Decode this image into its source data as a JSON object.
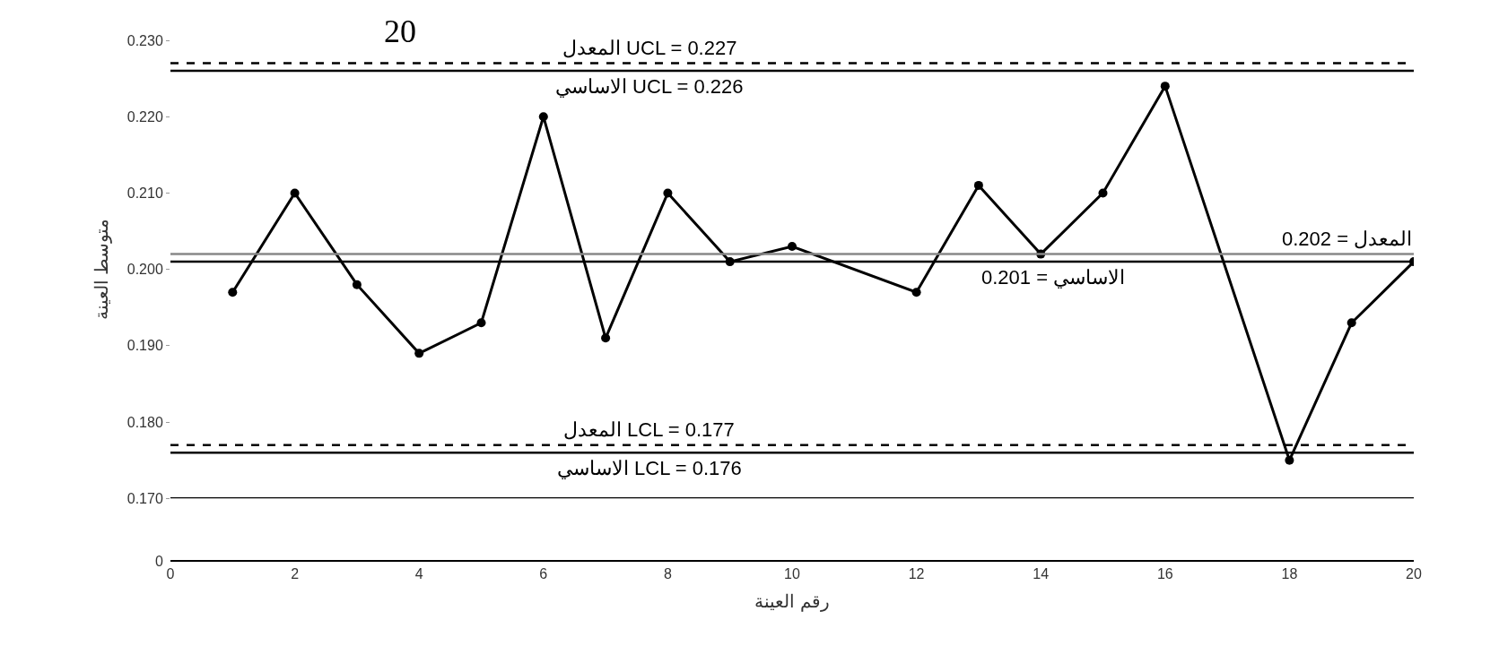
{
  "chart_data": {
    "type": "line",
    "xlabel": "رقم العينة",
    "ylabel": "متوسط العينة",
    "annotations": [
      "20",
      "0"
    ],
    "series": [
      {
        "color": "#000000",
        "x": [
          1,
          2,
          3,
          4,
          5,
          6,
          7,
          8,
          9,
          10,
          12,
          13,
          14,
          15,
          16,
          18,
          19,
          20
        ],
        "values": [
          0.197,
          0.21,
          0.198,
          0.189,
          0.193,
          0.22,
          0.191,
          0.21,
          0.201,
          0.203,
          0.197,
          0.211,
          0.202,
          0.21,
          0.224,
          0.175,
          0.193,
          0.201
        ]
      }
    ],
    "xlim": [
      0,
      20
    ],
    "xticks": [
      0,
      2,
      4,
      6,
      8,
      10,
      12,
      14,
      16,
      18,
      20
    ],
    "ylim": [
      0.17,
      0.23
    ],
    "yticks": [
      {
        "value": 0.17,
        "label": "0.170"
      },
      {
        "value": 0.18,
        "label": "0.180"
      },
      {
        "value": 0.19,
        "label": "0.190"
      },
      {
        "value": 0.2,
        "label": "0.200"
      },
      {
        "value": 0.21,
        "label": "0.210"
      },
      {
        "value": 0.22,
        "label": "0.220"
      },
      {
        "value": 0.23,
        "label": "0.230"
      }
    ],
    "ref_lines": [
      {
        "axis": "y",
        "value": 0.227,
        "label": "المعدل UCL = 0.227",
        "color": "#000000",
        "line_style": "dashed"
      },
      {
        "axis": "y",
        "value": 0.226,
        "label": "الاساسي UCL = 0.226",
        "color": "#000000",
        "line_style": "solid"
      },
      {
        "axis": "y",
        "value": 0.202,
        "label": "المعدل = 0.202",
        "color": "#888888",
        "line_style": "solid"
      },
      {
        "axis": "y",
        "value": 0.201,
        "label": "الاساسي = 0.201",
        "color": "#000000",
        "line_style": "solid"
      },
      {
        "axis": "y",
        "value": 0.177,
        "label": "المعدل LCL = 0.177",
        "color": "#000000",
        "line_style": "dashed"
      },
      {
        "axis": "y",
        "value": 0.176,
        "label": "الاساسي LCL = 0.176",
        "color": "#000000",
        "line_style": "solid"
      },
      {
        "axis": "y",
        "value": 0.17,
        "label": null,
        "color": "#000000",
        "line_style": "solid"
      }
    ],
    "marker": "circle",
    "line_style": "solid"
  }
}
